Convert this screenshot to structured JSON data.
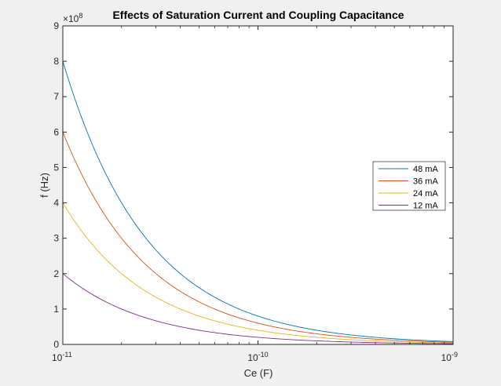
{
  "chart_data": {
    "type": "line",
    "title": "Effects of Saturation Current and Coupling Capacitance",
    "xlabel": "Ce (F)",
    "ylabel": "f (Hz)",
    "x_scale": "log",
    "xlim": [
      1e-11,
      1e-09
    ],
    "ylim": [
      0,
      900000000.0
    ],
    "y_exponent_label": "×10",
    "y_exponent_power": "8",
    "x_ticks": [
      {
        "value": 1e-11,
        "base": "10",
        "exp": "-11"
      },
      {
        "value": 1e-10,
        "base": "10",
        "exp": "-10"
      },
      {
        "value": 1e-09,
        "base": "10",
        "exp": "-9"
      }
    ],
    "y_ticks": [
      {
        "value": 0,
        "label": "0"
      },
      {
        "value": 100000000.0,
        "label": "1"
      },
      {
        "value": 200000000.0,
        "label": "2"
      },
      {
        "value": 300000000.0,
        "label": "3"
      },
      {
        "value": 400000000.0,
        "label": "4"
      },
      {
        "value": 500000000.0,
        "label": "5"
      },
      {
        "value": 600000000.0,
        "label": "6"
      },
      {
        "value": 700000000.0,
        "label": "7"
      },
      {
        "value": 800000000.0,
        "label": "8"
      },
      {
        "value": 900000000.0,
        "label": "9"
      }
    ],
    "grid": false,
    "legend_position": "right",
    "series": [
      {
        "name": "48 mA",
        "color": "#0072BD",
        "x": [
          1e-11,
          2e-11,
          5e-11,
          1e-10,
          2e-10,
          5e-10,
          1e-09
        ],
        "values": [
          800000000.0,
          400000000.0,
          160000000.0,
          80000000.0,
          40000000.0,
          16000000.0,
          8000000.0
        ]
      },
      {
        "name": "36 mA",
        "color": "#D95319",
        "x": [
          1e-11,
          2e-11,
          5e-11,
          1e-10,
          2e-10,
          5e-10,
          1e-09
        ],
        "values": [
          600000000.0,
          300000000.0,
          120000000.0,
          60000000.0,
          30000000.0,
          12000000.0,
          6000000.0
        ]
      },
      {
        "name": "24 mA",
        "color": "#EDB120",
        "x": [
          1e-11,
          2e-11,
          5e-11,
          1e-10,
          2e-10,
          5e-10,
          1e-09
        ],
        "values": [
          400000000.0,
          200000000.0,
          80000000.0,
          40000000.0,
          20000000.0,
          8000000.0,
          4000000.0
        ]
      },
      {
        "name": "12 mA",
        "color": "#7E2F8E",
        "x": [
          1e-11,
          2e-11,
          5e-11,
          1e-10,
          2e-10,
          5e-10,
          1e-09
        ],
        "values": [
          200000000.0,
          100000000.0,
          40000000.0,
          20000000.0,
          10000000.0,
          4000000.0,
          2000000.0
        ]
      }
    ]
  }
}
